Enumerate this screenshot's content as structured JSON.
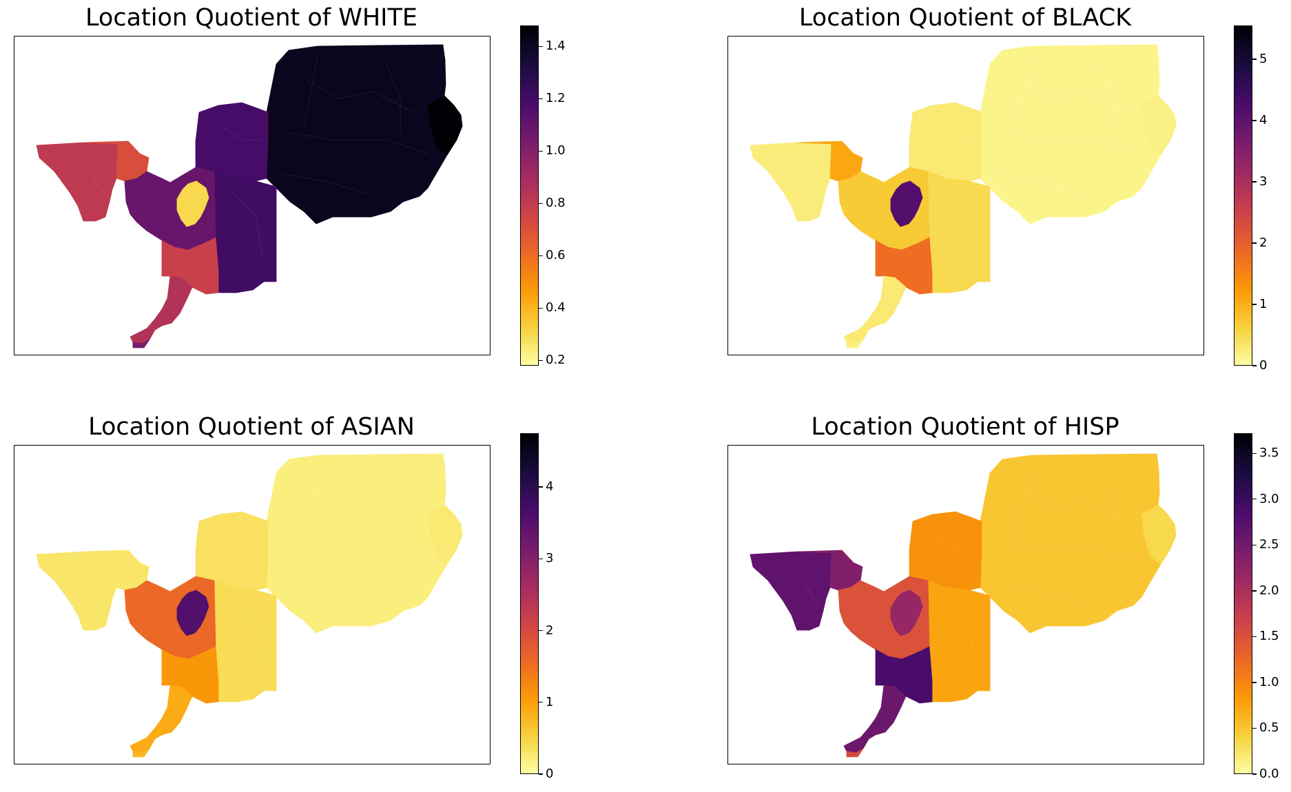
{
  "colormap": "inferno_r",
  "colors": [
    "#fcffa4",
    "#f7d13d",
    "#fb9b06",
    "#ed6925",
    "#cf4446",
    "#a52c60",
    "#781c6d",
    "#4a0c6b",
    "#1b0c41",
    "#000004"
  ],
  "panels": [
    {
      "id": "white",
      "title": "Location Quotient of WHITE",
      "vmin": 0.18,
      "vmax": 1.48,
      "ticks": [
        "0.2",
        "0.4",
        "0.6",
        "0.8",
        "1.0",
        "1.2",
        "1.4"
      ],
      "tick_values": [
        0.2,
        0.4,
        0.6,
        0.8,
        1.0,
        1.2,
        1.4
      ],
      "region_values": {
        "east": 1.42,
        "east_edge": 1.48,
        "centre_n": 1.2,
        "centre_s": 1.22,
        "west": 0.82,
        "west_n": 0.72,
        "core": 1.1,
        "urban": 0.3,
        "south": 0.78,
        "delta": 0.86,
        "tip": 1.05
      }
    },
    {
      "id": "black",
      "title": "Location Quotient of BLACK",
      "vmin": 0,
      "vmax": 5.55,
      "ticks": [
        "0",
        "1",
        "2",
        "3",
        "4",
        "5"
      ],
      "tick_values": [
        0,
        1,
        2,
        3,
        4,
        5
      ],
      "region_values": {
        "east": 0.15,
        "east_edge": 0.2,
        "centre_n": 0.3,
        "centre_s": 0.5,
        "west": 0.25,
        "west_n": 1.1,
        "core": 0.7,
        "urban": 4.2,
        "south": 1.8,
        "delta": 0.3,
        "tip": 0.2
      }
    },
    {
      "id": "asian",
      "title": "Location Quotient of ASIAN",
      "vmin": 0,
      "vmax": 4.75,
      "ticks": [
        "0",
        "1",
        "2",
        "3",
        "4"
      ],
      "tick_values": [
        0,
        1,
        2,
        3,
        4
      ],
      "region_values": {
        "east": 0.2,
        "east_edge": 0.25,
        "centre_n": 0.35,
        "centre_s": 0.4,
        "west": 0.3,
        "west_n": 0.3,
        "core": 1.6,
        "urban": 3.6,
        "south": 1.1,
        "delta": 0.9,
        "tip": 0.8
      }
    },
    {
      "id": "hisp",
      "title": "Location Quotient of HISP",
      "vmin": 0,
      "vmax": 3.72,
      "ticks": [
        "0.0",
        "0.5",
        "1.0",
        "1.5",
        "2.0",
        "2.5",
        "3.0",
        "3.5"
      ],
      "tick_values": [
        0.0,
        0.5,
        1.0,
        1.5,
        2.0,
        2.5,
        3.0,
        3.5
      ],
      "region_values": {
        "east": 0.5,
        "east_edge": 0.35,
        "centre_n": 0.9,
        "centre_s": 0.75,
        "west": 2.7,
        "west_n": 2.4,
        "core": 1.5,
        "urban": 2.2,
        "south": 2.9,
        "delta": 2.6,
        "tip": 1.6
      }
    }
  ]
}
